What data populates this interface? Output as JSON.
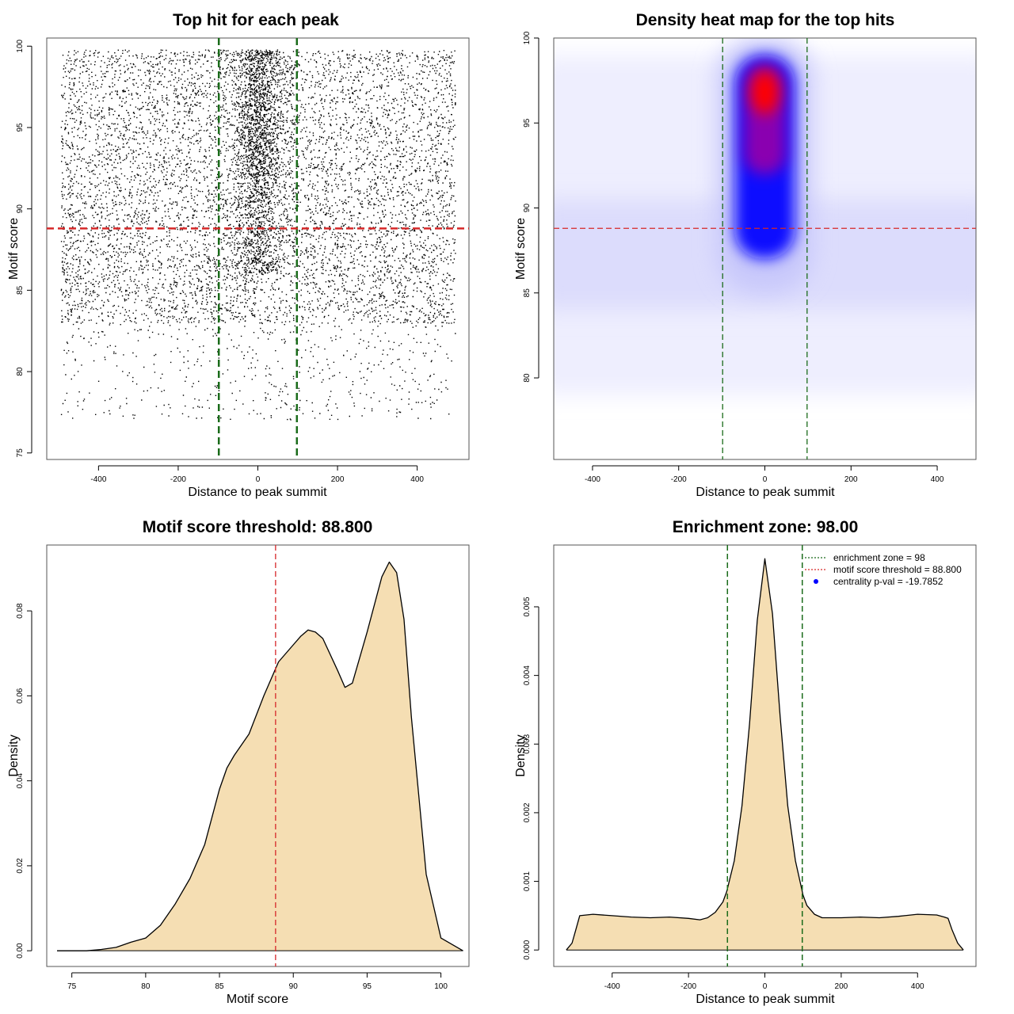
{
  "colors": {
    "points": "#000000",
    "threshold_line": "#d62728",
    "zone_line": "#1a6b1a",
    "fill": "#f5deb3",
    "curve": "#000000",
    "heat_low": "#ffffff",
    "heat_mid": "#0000ff",
    "heat_high": "#ff0000",
    "legend_dot": "#0000ff"
  },
  "chart_data": [
    {
      "type": "scatter",
      "title": "Top hit for each peak",
      "xlabel": "Distance to peak summit",
      "ylabel": "Motif score",
      "xlim": [
        -530,
        530
      ],
      "ylim": [
        74.6,
        100.5
      ],
      "x_ticks": [
        -400,
        -200,
        0,
        200,
        400
      ],
      "y_ticks": [
        75,
        80,
        85,
        90,
        95,
        100
      ],
      "x_tick_labels": [
        "-400",
        "-200",
        "0",
        "200",
        "400"
      ],
      "y_tick_labels": [
        "75",
        "80",
        "85",
        "90",
        "95",
        "100"
      ],
      "hlines": [
        88.8
      ],
      "vlines": [
        -98,
        98
      ],
      "point_summary": {
        "background_points": 7500,
        "background_x_range": [
          -495,
          495
        ],
        "background_score_range": [
          77,
          99.8
        ],
        "central_points": 6000,
        "central_x_mean": 0,
        "central_x_sd": 22,
        "central_score_range": [
          86,
          99.8
        ]
      }
    },
    {
      "type": "heatmap",
      "title": "Density heat map for the top hits",
      "xlabel": "Distance to peak summit",
      "ylabel": "Motif score",
      "xlim": [
        -490,
        490
      ],
      "ylim": [
        75.2,
        100
      ],
      "x_ticks": [
        -400,
        -200,
        0,
        200,
        400
      ],
      "y_ticks": [
        80,
        85,
        90,
        95,
        100
      ],
      "x_tick_labels": [
        "-400",
        "-200",
        "0",
        "200",
        "400"
      ],
      "y_tick_labels": [
        "80",
        "85",
        "90",
        "95",
        "100"
      ],
      "hlines": [
        88.8
      ],
      "vlines": [
        -98,
        98
      ],
      "hotspot": {
        "x": 0,
        "score": 96.8
      },
      "core_score_range": [
        86,
        99
      ]
    },
    {
      "type": "area",
      "title": "Motif score threshold: 88.800",
      "xlabel": "Motif score",
      "ylabel": "Density",
      "xlim": [
        73.3,
        101.9
      ],
      "ylim": [
        -0.0037,
        0.0955
      ],
      "x_ticks": [
        75,
        80,
        85,
        90,
        95,
        100
      ],
      "y_ticks": [
        0.0,
        0.02,
        0.04,
        0.06,
        0.08
      ],
      "x_tick_labels": [
        "75",
        "80",
        "85",
        "90",
        "95",
        "100"
      ],
      "y_tick_labels": [
        "0.00",
        "0.02",
        "0.04",
        "0.06",
        "0.08"
      ],
      "vlines": [
        88.8
      ],
      "x": [
        74,
        76,
        77,
        78,
        79,
        80,
        81,
        82,
        83,
        84,
        85,
        85.5,
        86,
        87,
        88,
        89,
        90,
        90.5,
        91,
        91.5,
        92,
        93,
        93.5,
        94,
        95,
        96,
        96.5,
        97,
        97.5,
        98,
        99,
        100,
        101.5
      ],
      "y": [
        0,
        0,
        0.0003,
        0.0008,
        0.002,
        0.003,
        0.006,
        0.011,
        0.017,
        0.025,
        0.038,
        0.043,
        0.046,
        0.051,
        0.06,
        0.068,
        0.072,
        0.074,
        0.0755,
        0.075,
        0.0735,
        0.066,
        0.062,
        0.063,
        0.075,
        0.088,
        0.0915,
        0.089,
        0.078,
        0.055,
        0.018,
        0.003,
        0
      ]
    },
    {
      "type": "area",
      "title": "Enrichment zone: 98.00",
      "xlabel": "Distance to peak summit",
      "ylabel": "Density",
      "xlim": [
        -553,
        553
      ],
      "ylim": [
        -0.00024,
        0.0059
      ],
      "x_ticks": [
        -400,
        -200,
        0,
        200,
        400
      ],
      "y_ticks": [
        0.0,
        0.001,
        0.002,
        0.003,
        0.004,
        0.005
      ],
      "x_tick_labels": [
        "-400",
        "-200",
        "0",
        "200",
        "400"
      ],
      "y_tick_labels": [
        "0.000",
        "0.001",
        "0.002",
        "0.003",
        "0.004",
        "0.005"
      ],
      "vlines": [
        -98,
        98
      ],
      "x": [
        -520,
        -505,
        -495,
        -485,
        -450,
        -400,
        -350,
        -300,
        -250,
        -200,
        -170,
        -150,
        -130,
        -110,
        -100,
        -80,
        -60,
        -40,
        -20,
        0,
        20,
        40,
        60,
        80,
        100,
        110,
        130,
        150,
        200,
        250,
        300,
        350,
        400,
        450,
        470,
        480,
        490,
        505,
        520
      ],
      "y": [
        0,
        0.0001,
        0.0003,
        0.0005,
        0.00052,
        0.0005,
        0.00048,
        0.00047,
        0.00048,
        0.00046,
        0.00044,
        0.00047,
        0.00055,
        0.0007,
        0.00085,
        0.0013,
        0.0021,
        0.0033,
        0.0048,
        0.0057,
        0.0049,
        0.0034,
        0.0021,
        0.0013,
        0.0008,
        0.00065,
        0.00052,
        0.00047,
        0.00047,
        0.00048,
        0.00047,
        0.00049,
        0.00052,
        0.00051,
        0.00048,
        0.00046,
        0.0003,
        0.0001,
        0
      ],
      "legend": [
        {
          "label": "enrichment zone = 98",
          "symbol": "dotted-green"
        },
        {
          "label": "motif score threshold = 88.800",
          "symbol": "dotted-red"
        },
        {
          "label": "centrality p-val = -19.7852",
          "symbol": "blue-dot"
        }
      ],
      "legend_position": "top-right"
    }
  ]
}
